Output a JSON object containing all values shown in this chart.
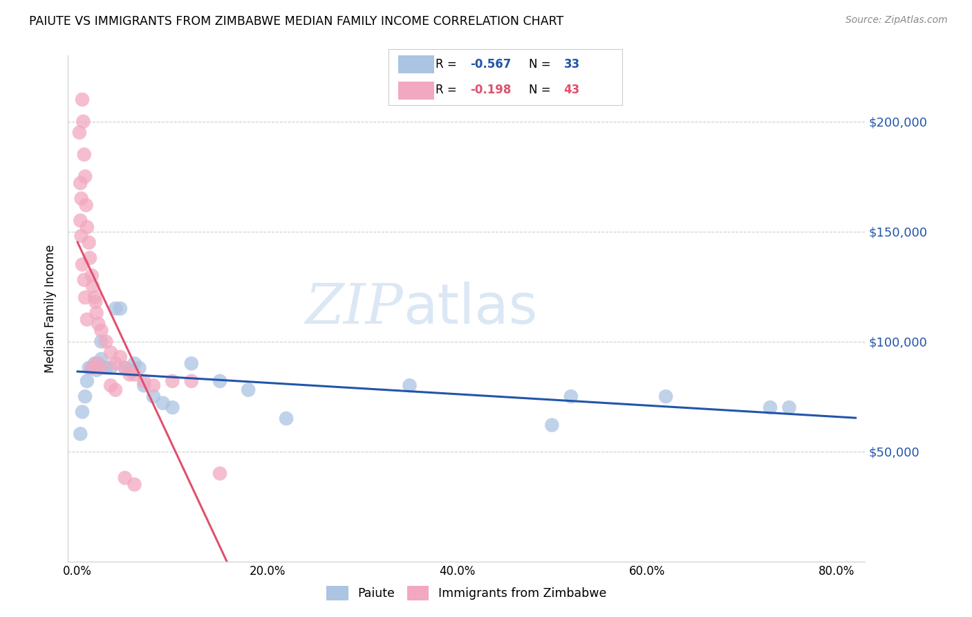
{
  "title": "PAIUTE VS IMMIGRANTS FROM ZIMBABWE MEDIAN FAMILY INCOME CORRELATION CHART",
  "source": "Source: ZipAtlas.com",
  "ylabel": "Median Family Income",
  "x_tick_labels": [
    "0.0%",
    "20.0%",
    "40.0%",
    "60.0%",
    "80.0%"
  ],
  "x_ticks": [
    0.0,
    0.2,
    0.4,
    0.6,
    0.8
  ],
  "xlim": [
    -0.01,
    0.83
  ],
  "ylim": [
    0,
    230000
  ],
  "y_ticks": [
    50000,
    100000,
    150000,
    200000
  ],
  "y_tick_labels": [
    "$50,000",
    "$100,000",
    "$150,000",
    "$200,000"
  ],
  "legend_labels": [
    "Paiute",
    "Immigrants from Zimbabwe"
  ],
  "blue_color": "#aac4e2",
  "pink_color": "#f2a8c0",
  "blue_line_color": "#2255aa",
  "pink_line_color": "#e0506e",
  "watermark_zip": "ZIP",
  "watermark_atlas": "atlas",
  "legend_R_blue": "-0.567",
  "legend_N_blue": "33",
  "legend_R_pink": "-0.198",
  "legend_N_pink": "43",
  "blue_scatter_x": [
    0.003,
    0.005,
    0.008,
    0.01,
    0.012,
    0.015,
    0.018,
    0.02,
    0.022,
    0.025,
    0.025,
    0.03,
    0.035,
    0.04,
    0.045,
    0.05,
    0.055,
    0.06,
    0.065,
    0.07,
    0.08,
    0.09,
    0.1,
    0.12,
    0.15,
    0.18,
    0.22,
    0.35,
    0.5,
    0.52,
    0.62,
    0.73,
    0.75
  ],
  "blue_scatter_y": [
    58000,
    68000,
    75000,
    82000,
    88000,
    88000,
    90000,
    87000,
    90000,
    92000,
    100000,
    88000,
    88000,
    115000,
    115000,
    88000,
    87000,
    90000,
    88000,
    80000,
    75000,
    72000,
    70000,
    90000,
    82000,
    78000,
    65000,
    80000,
    62000,
    75000,
    75000,
    70000,
    70000
  ],
  "pink_scatter_x": [
    0.002,
    0.003,
    0.004,
    0.005,
    0.006,
    0.007,
    0.008,
    0.009,
    0.01,
    0.012,
    0.013,
    0.015,
    0.016,
    0.018,
    0.019,
    0.02,
    0.022,
    0.025,
    0.03,
    0.035,
    0.04,
    0.045,
    0.05,
    0.055,
    0.06,
    0.07,
    0.08,
    0.1,
    0.12,
    0.15,
    0.003,
    0.004,
    0.005,
    0.007,
    0.008,
    0.01,
    0.015,
    0.02,
    0.025,
    0.035,
    0.04,
    0.05,
    0.06
  ],
  "pink_scatter_y": [
    195000,
    172000,
    165000,
    210000,
    200000,
    185000,
    175000,
    162000,
    152000,
    145000,
    138000,
    130000,
    125000,
    120000,
    118000,
    113000,
    108000,
    105000,
    100000,
    95000,
    90000,
    93000,
    88000,
    85000,
    85000,
    82000,
    80000,
    82000,
    82000,
    40000,
    155000,
    148000,
    135000,
    128000,
    120000,
    110000,
    88000,
    90000,
    88000,
    80000,
    78000,
    38000,
    35000
  ]
}
